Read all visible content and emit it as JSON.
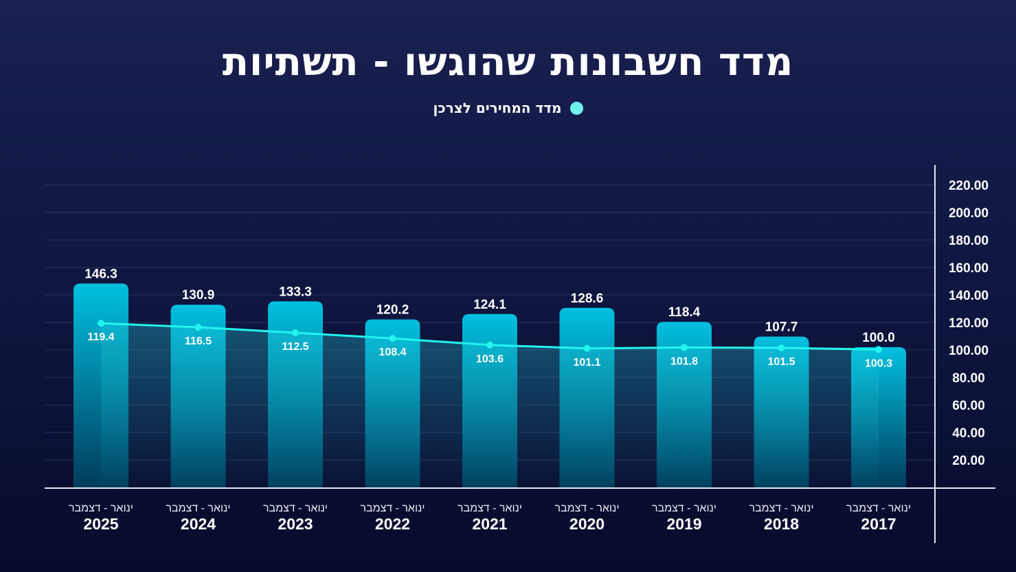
{
  "title": "מדד חשבונות שהוגשו - תשתיות",
  "colors": {
    "bar_top": "#00c0e0",
    "bar_bottom": "#003c5c",
    "line": "#22f5ee",
    "legend_dot": "#6ff3ec"
  },
  "chart_data": {
    "type": "bar",
    "title": "מדד חשבונות שהוגשו - תשתיות",
    "legend": [
      {
        "label": "מדד המחירים לצרכן",
        "marker": "line",
        "placement": "top-center"
      }
    ],
    "period_label": "ינואר - דצמבר",
    "categories": [
      "2025",
      "2024",
      "2023",
      "2022",
      "2021",
      "2020",
      "2019",
      "2018",
      "2017"
    ],
    "series": [
      {
        "name": "מדד חשבונות שהוגשו",
        "type": "bar",
        "values": [
          146.3,
          130.9,
          133.3,
          120.2,
          124.1,
          128.6,
          118.4,
          107.7,
          100.0
        ],
        "labels": [
          "146.3",
          "130.9",
          "133.3",
          "120.2",
          "124.1",
          "128.6",
          "118.4",
          "107.7",
          "100.0"
        ]
      },
      {
        "name": "מדד המחירים לצרכן",
        "type": "line",
        "values": [
          119.4,
          116.5,
          112.5,
          108.4,
          103.6,
          101.1,
          101.8,
          101.5,
          100.3
        ],
        "labels": [
          "119.4",
          "116.5",
          "112.5",
          "108.4",
          "103.6",
          "101.1",
          "101.8",
          "101.5",
          "100.3"
        ]
      }
    ],
    "yaxis": {
      "position": "right",
      "ylim": [
        0,
        220
      ],
      "ticks": [
        "20.00",
        "40.00",
        "60.00",
        "80.00",
        "100.00",
        "120.00",
        "140.00",
        "160.00",
        "180.00",
        "200.00",
        "220.00"
      ],
      "tick_values": [
        20,
        40,
        60,
        80,
        100,
        120,
        140,
        160,
        180,
        200,
        220
      ]
    },
    "grid": true
  }
}
